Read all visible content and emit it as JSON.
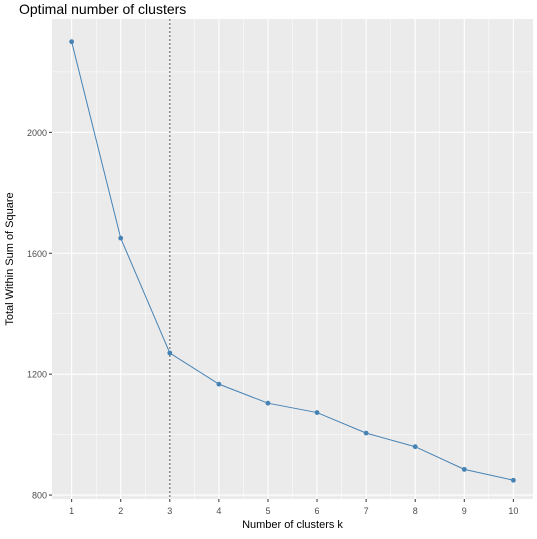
{
  "chart_data": {
    "type": "line",
    "title": "Optimal number of clusters",
    "xlabel": "Number of clusters k",
    "ylabel": "Total Within Sum of Square",
    "x": [
      1,
      2,
      3,
      4,
      5,
      6,
      7,
      8,
      9,
      10
    ],
    "x_tick_labels": [
      "1",
      "2",
      "3",
      "4",
      "5",
      "6",
      "7",
      "8",
      "9",
      "10"
    ],
    "y": [
      2300,
      1650,
      1270,
      1167,
      1104,
      1073,
      1005,
      960,
      885,
      849
    ],
    "y_ticks": [
      800,
      1200,
      1600,
      2000
    ],
    "y_tick_labels": [
      "800",
      "1200",
      "1600",
      "2000"
    ],
    "xlim": [
      0.6,
      10.4
    ],
    "ylim": [
      787,
      2375
    ],
    "vline_x": 3,
    "grid": true,
    "legend": "none",
    "colors": {
      "line": "#4682B4",
      "panel_bg": "#EBEBEB",
      "grid": "#FFFFFF",
      "vline": "#808080",
      "text": "#000000",
      "tick_text": "#4D4D4D"
    }
  }
}
